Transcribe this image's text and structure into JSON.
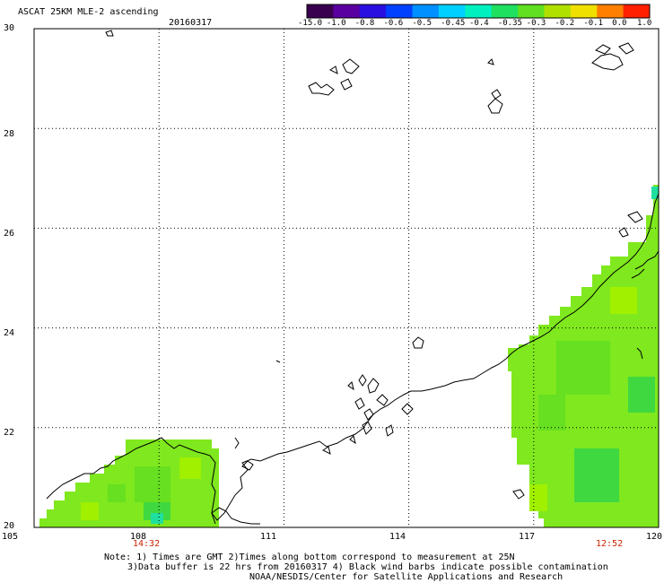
{
  "header": {
    "title": "ASCAT 25KM MLE-2 ascending",
    "date": "20160317"
  },
  "colorbar": {
    "labels": [
      "-15.0",
      "-1.0",
      "-0.8",
      "-0.6",
      "-0.5",
      "-0.45",
      "-0.4",
      "-0.35",
      "-0.3",
      "-0.2",
      "-0.1",
      "0.0",
      "1.0"
    ],
    "colors": [
      "#3a0050",
      "#5a00a0",
      "#2a10e0",
      "#0040ff",
      "#0090ff",
      "#00d0ff",
      "#00f0c0",
      "#20e060",
      "#60e020",
      "#b0e000",
      "#f0e000",
      "#ff8000",
      "#ff2000"
    ]
  },
  "axes": {
    "x_ticks": [
      "105",
      "108",
      "111",
      "114",
      "117",
      "120"
    ],
    "y_ticks": [
      "30",
      "28",
      "26",
      "24",
      "22",
      "20"
    ],
    "x_range": [
      105,
      120
    ],
    "y_range": [
      20,
      30
    ]
  },
  "time_labels": {
    "left": "14:32",
    "right": "12:52"
  },
  "notes": {
    "line1": "Note: 1) Times are GMT 2)Times along bottom correspond to measurement at 25N",
    "line2": "3)Data buffer is 22 hrs from 20160317 4) Black wind barbs indicate possible contamination",
    "line3": "NOAA/NESDIS/Center for Satellite Applications and Research"
  },
  "colors": {
    "data_main": "#7fe81e",
    "data_alt": "#66e020",
    "data_light": "#a0f000",
    "data_dark": "#40d840",
    "data_cyan": "#20e0a0",
    "coast": "#000000",
    "grid": "#000000"
  }
}
